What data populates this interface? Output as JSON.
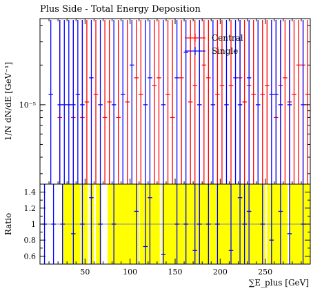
{
  "chart_data": [
    {
      "type": "line",
      "title": "Plus Side - Total Energy Deposition",
      "ylabel": "1/N dN/dE [GeV⁻¹]",
      "yscale": "log",
      "xlim": [
        0,
        300
      ],
      "ylim": [
        2.5e-06,
        4.5e-05
      ],
      "ytick_labels": [
        {
          "value": 1e-05,
          "label": "10⁻⁵"
        }
      ],
      "legend": {
        "position": "top-right",
        "entries": [
          "Central",
          "Single"
        ]
      },
      "series": [
        {
          "name": "Central",
          "color": "#ff0000",
          "points": [
            {
              "x": 22,
              "y": 8e-06
            },
            {
              "x": 37,
              "y": 8e-06
            },
            {
              "x": 47,
              "y": 8e-06
            },
            {
              "x": 52,
              "y": 1.05e-05
            },
            {
              "x": 62,
              "y": 1.2e-05
            },
            {
              "x": 72,
              "y": 8e-06
            },
            {
              "x": 77,
              "y": 1.05e-05
            },
            {
              "x": 87,
              "y": 8e-06
            },
            {
              "x": 97,
              "y": 1.05e-05
            },
            {
              "x": 107,
              "y": 1.6e-05
            },
            {
              "x": 112,
              "y": 1.2e-05
            },
            {
              "x": 127,
              "y": 1.4e-05
            },
            {
              "x": 132,
              "y": 1.6e-05
            },
            {
              "x": 142,
              "y": 1.2e-05
            },
            {
              "x": 147,
              "y": 8e-06
            },
            {
              "x": 157,
              "y": 1.6e-05
            },
            {
              "x": 167,
              "y": 1.05e-05
            },
            {
              "x": 172,
              "y": 1.4e-05
            },
            {
              "x": 182,
              "y": 2e-05
            },
            {
              "x": 187,
              "y": 1.6e-05
            },
            {
              "x": 197,
              "y": 1.2e-05
            },
            {
              "x": 202,
              "y": 1.4e-05
            },
            {
              "x": 212,
              "y": 1.4e-05
            },
            {
              "x": 222,
              "y": 1.6e-05
            },
            {
              "x": 227,
              "y": 1.05e-05
            },
            {
              "x": 232,
              "y": 1.4e-05
            },
            {
              "x": 237,
              "y": 1.2e-05
            },
            {
              "x": 247,
              "y": 1.2e-05
            },
            {
              "x": 252,
              "y": 1.4e-05
            },
            {
              "x": 262,
              "y": 8e-06
            },
            {
              "x": 267,
              "y": 1.4e-05
            },
            {
              "x": 272,
              "y": 1.6e-05
            },
            {
              "x": 277,
              "y": 1.05e-05
            },
            {
              "x": 282,
              "y": 1.2e-05
            },
            {
              "x": 287,
              "y": 2e-05
            },
            {
              "x": 292,
              "y": 2e-05
            },
            {
              "x": 297,
              "y": 1.2e-05
            }
          ]
        },
        {
          "name": "Single",
          "color": "#0000ff",
          "points": [
            {
              "x": 12,
              "y": 1.2e-05
            },
            {
              "x": 22,
              "y": 1e-05
            },
            {
              "x": 27,
              "y": 1e-05
            },
            {
              "x": 32,
              "y": 1e-05
            },
            {
              "x": 37,
              "y": 1e-05
            },
            {
              "x": 42,
              "y": 1.2e-05
            },
            {
              "x": 47,
              "y": 1e-05
            },
            {
              "x": 57,
              "y": 1.6e-05
            },
            {
              "x": 67,
              "y": 1e-05
            },
            {
              "x": 82,
              "y": 1e-05
            },
            {
              "x": 92,
              "y": 1.2e-05
            },
            {
              "x": 102,
              "y": 2e-05
            },
            {
              "x": 117,
              "y": 1e-05
            },
            {
              "x": 122,
              "y": 1.6e-05
            },
            {
              "x": 137,
              "y": 1e-05
            },
            {
              "x": 152,
              "y": 1.6e-05
            },
            {
              "x": 162,
              "y": 2.5e-05
            },
            {
              "x": 177,
              "y": 1e-05
            },
            {
              "x": 192,
              "y": 1e-05
            },
            {
              "x": 207,
              "y": 1e-05
            },
            {
              "x": 217,
              "y": 1.6e-05
            },
            {
              "x": 222,
              "y": 1e-05
            },
            {
              "x": 232,
              "y": 1.6e-05
            },
            {
              "x": 242,
              "y": 1e-05
            },
            {
              "x": 257,
              "y": 1.2e-05
            },
            {
              "x": 262,
              "y": 1.2e-05
            },
            {
              "x": 267,
              "y": 1e-05
            },
            {
              "x": 277,
              "y": 1e-05
            },
            {
              "x": 292,
              "y": 1e-05
            }
          ]
        }
      ]
    },
    {
      "type": "line",
      "ylabel": "Ratio",
      "xlabel": "∑E_plus [GeV]",
      "xlim": [
        0,
        300
      ],
      "ylim": [
        0.5,
        1.5
      ],
      "x_tick_labels": [
        50,
        100,
        150,
        200,
        250
      ],
      "y_tick_labels": [
        "0.6",
        "0.8",
        "1",
        "1.2",
        "1.4"
      ],
      "reference_line": 1,
      "band_color": "#ffff00",
      "band": [
        {
          "x0": 25,
          "x1": 45
        },
        {
          "x0": 47,
          "x1": 53
        },
        {
          "x0": 55,
          "x1": 60
        },
        {
          "x0": 62,
          "x1": 68
        },
        {
          "x0": 75,
          "x1": 100
        },
        {
          "x0": 100,
          "x1": 110
        },
        {
          "x0": 111,
          "x1": 133
        },
        {
          "x0": 135,
          "x1": 250
        },
        {
          "x0": 252,
          "x1": 275
        },
        {
          "x0": 277,
          "x1": 300
        }
      ],
      "series": [
        {
          "name": "Single",
          "color": "#0000ff",
          "points": [
            {
              "x": 5,
              "y": 1.0
            },
            {
              "x": 15,
              "y": 1.0
            },
            {
              "x": 25,
              "y": 1.0
            },
            {
              "x": 37,
              "y": 0.88
            },
            {
              "x": 47,
              "y": 1.0
            },
            {
              "x": 57,
              "y": 1.33
            },
            {
              "x": 67,
              "y": 1.0
            },
            {
              "x": 82,
              "y": 1.0
            },
            {
              "x": 107,
              "y": 1.16
            },
            {
              "x": 117,
              "y": 0.72
            },
            {
              "x": 122,
              "y": 1.33
            },
            {
              "x": 137,
              "y": 0.62
            },
            {
              "x": 152,
              "y": 1.0
            },
            {
              "x": 162,
              "y": 1.0
            },
            {
              "x": 172,
              "y": 0.67
            },
            {
              "x": 177,
              "y": 1.0
            },
            {
              "x": 187,
              "y": 1.0
            },
            {
              "x": 197,
              "y": 1.0
            },
            {
              "x": 212,
              "y": 0.67
            },
            {
              "x": 222,
              "y": 1.33
            },
            {
              "x": 227,
              "y": 1.0
            },
            {
              "x": 232,
              "y": 1.16
            },
            {
              "x": 247,
              "y": 1.0
            },
            {
              "x": 257,
              "y": 0.8
            },
            {
              "x": 267,
              "y": 1.16
            },
            {
              "x": 277,
              "y": 0.88
            },
            {
              "x": 292,
              "y": 1.0
            }
          ]
        }
      ]
    }
  ]
}
